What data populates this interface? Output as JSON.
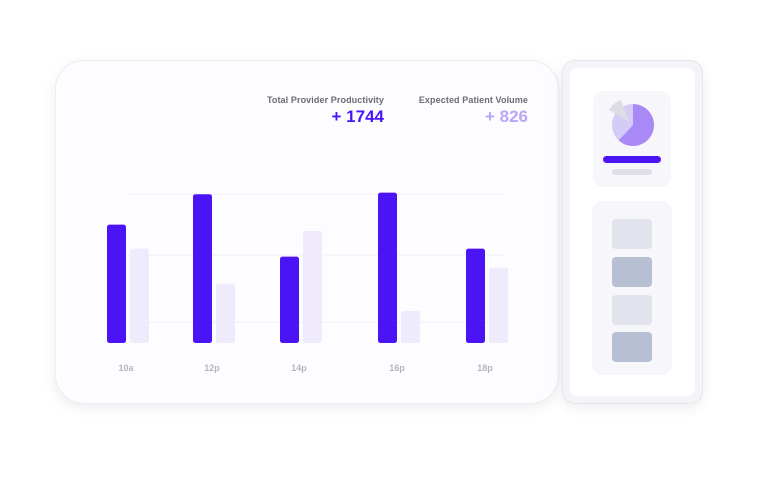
{
  "metrics": {
    "provider": {
      "label": "Total Provider Productivity",
      "value": "+ 1744",
      "color": "#4a14f5"
    },
    "patient": {
      "label": "Expected Patient Volume",
      "value": "+ 826",
      "color": "#b9a6f6"
    }
  },
  "chart_data": {
    "type": "bar",
    "categories": [
      "10a",
      "12p",
      "14p",
      "16p",
      "18p"
    ],
    "series": [
      {
        "values": [
          74,
          93,
          54,
          94,
          59
        ],
        "color": "#4a14f5"
      },
      {
        "values": [
          59,
          37,
          70,
          20,
          47
        ],
        "color": "#f0eafd"
      }
    ],
    "ylim": [
      0,
      100
    ],
    "grid": true,
    "axis_label_color": "#b4b4bc"
  },
  "side_panel": {
    "pie": {
      "slices": [
        0.62,
        0.38
      ],
      "colors": [
        "#a989f5",
        "#d4ccf7"
      ]
    },
    "tiles": [
      {
        "color": "#e2e4ed"
      },
      {
        "color": "#b6c0d2"
      },
      {
        "color": "#e2e4ed"
      },
      {
        "color": "#b6c0d2"
      }
    ]
  }
}
